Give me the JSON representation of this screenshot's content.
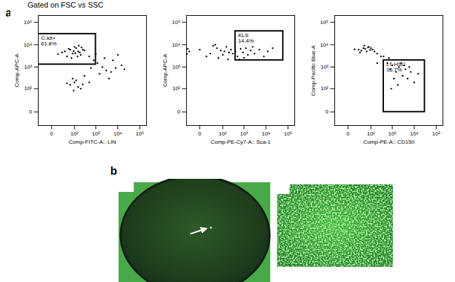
{
  "title": "Gated on FSC vs SSC",
  "panel_labels": [
    "a",
    "b"
  ],
  "chart_data": [
    {
      "type": "scatter",
      "x_label": "Comp-FITC-A:: LIN",
      "y_label": "Comp-APC-A",
      "color": "#000000",
      "marker": "dot",
      "log": true,
      "xlim": [
        -30,
        200000
      ],
      "ylim": [
        -30,
        200000
      ],
      "xticks": [
        0,
        {
          "value": 100,
          "label": "10²"
        },
        {
          "value": 1000,
          "label": "10³"
        },
        {
          "value": 10000,
          "label": "10⁴"
        },
        {
          "value": 100000,
          "label": "10⁵"
        }
      ],
      "yticks": [
        0,
        {
          "value": 100,
          "label": "10²"
        },
        {
          "value": 1000,
          "label": "10³"
        },
        {
          "value": 10000,
          "label": "10⁴"
        },
        {
          "value": 100000,
          "label": "10⁵"
        }
      ],
      "x": [
        30,
        60,
        80,
        120,
        150,
        200,
        40,
        100,
        250,
        180,
        70,
        300,
        20,
        90,
        140,
        220,
        50,
        110,
        160,
        10,
        500,
        800,
        1200,
        2000,
        3000,
        5000,
        8000,
        15000,
        600,
        1500,
        4000,
        60,
        100,
        150,
        80,
        200,
        120,
        40,
        250,
        300,
        90,
        500,
        1000,
        2500,
        6000,
        10000,
        20000
      ],
      "y": [
        5000,
        6000,
        4000,
        7000,
        5000,
        3500,
        3000,
        8000,
        6000,
        4500,
        2500,
        5500,
        4500,
        5200,
        3000,
        7500,
        6500,
        4200,
        9000,
        3800,
        3000,
        2000,
        1500,
        1000,
        700,
        600,
        900,
        1200,
        900,
        500,
        300,
        150,
        200,
        120,
        300,
        100,
        250,
        180,
        160,
        400,
        80,
        200,
        4000,
        2500,
        2000,
        3500,
        800
      ],
      "annotations": [
        {
          "text": "C-kit+",
          "value": 61.8,
          "value_label": "61.8%",
          "x": [
            -30,
            1000
          ],
          "y": [
            1300,
            30000
          ]
        }
      ]
    },
    {
      "type": "scatter",
      "x_label": "Comp-PE-Cy7-A:: Sca-1",
      "y_label": "Comp-APC-A",
      "color": "#000000",
      "marker": "dot",
      "log": true,
      "xlim": [
        -30,
        200000
      ],
      "ylim": [
        -30,
        200000
      ],
      "xticks": [
        0,
        {
          "value": 100,
          "label": "10²"
        },
        {
          "value": 1000,
          "label": "10³"
        },
        {
          "value": 10000,
          "label": "10⁴"
        },
        {
          "value": 100000,
          "label": "10⁵"
        }
      ],
      "yticks": [
        0,
        {
          "value": 100,
          "label": "10²"
        },
        {
          "value": 1000,
          "label": "10³"
        },
        {
          "value": 10000,
          "label": "10⁴"
        },
        {
          "value": 100000,
          "label": "10⁵"
        }
      ],
      "x": [
        -20,
        0,
        20,
        50,
        80,
        100,
        150,
        200,
        10,
        -25,
        60,
        120,
        250,
        300,
        30,
        400,
        500,
        700,
        900,
        1200,
        1500,
        2000,
        3000,
        5000,
        8000,
        12000,
        20000,
        600,
        1000,
        -28,
        180,
        40,
        2500
      ],
      "y": [
        5000,
        6000,
        4000,
        7000,
        5500,
        3500,
        8000,
        4500,
        3000,
        6500,
        2500,
        5000,
        6000,
        4000,
        9000,
        5000,
        3000,
        6500,
        4500,
        7000,
        3500,
        5500,
        4000,
        6000,
        3000,
        5000,
        7000,
        2200,
        2600,
        3800,
        2200,
        10000,
        8000
      ],
      "annotations": [
        {
          "text": "KLS",
          "value": 14.4,
          "value_label": "14.4%",
          "x": [
            400,
            60000
          ],
          "y": [
            2000,
            40000
          ]
        }
      ]
    },
    {
      "type": "scatter",
      "x_label": "Comp-PE-A:: CD150",
      "y_label": "Comp-Pacific Blue-A",
      "color": "#000000",
      "marker": "dot",
      "log": true,
      "xlim": [
        -30,
        200000
      ],
      "ylim": [
        -30,
        200000
      ],
      "xticks": [
        0,
        {
          "value": 100,
          "label": "10²"
        },
        {
          "value": 1000,
          "label": "10³"
        },
        {
          "value": 10000,
          "label": "10⁴"
        },
        {
          "value": 100000,
          "label": "10⁵"
        }
      ],
      "yticks": [
        0,
        {
          "value": 100,
          "label": "10²"
        },
        {
          "value": 1000,
          "label": "10³"
        },
        {
          "value": 10000,
          "label": "10⁴"
        },
        {
          "value": 100000,
          "label": "10⁵"
        }
      ],
      "x": [
        20,
        40,
        60,
        80,
        30,
        50,
        70,
        10,
        90,
        100,
        120,
        45,
        25,
        150,
        200,
        300,
        600,
        800,
        1000,
        1500,
        2000,
        3000,
        4000,
        5000,
        7000,
        10000,
        1200,
        2500,
        700,
        1800,
        3500,
        6000,
        900,
        15000,
        400,
        200
      ],
      "y": [
        6000,
        7000,
        5000,
        8000,
        5500,
        6500,
        7500,
        6200,
        5800,
        7000,
        6000,
        9000,
        4500,
        5000,
        4000,
        3000,
        1500,
        800,
        1200,
        600,
        1000,
        400,
        800,
        300,
        600,
        200,
        300,
        1500,
        2500,
        150,
        1200,
        1000,
        100,
        500,
        3000,
        1500
      ],
      "annotations": [
        {
          "text": "LT-HSC",
          "value": 16.7,
          "value_label": "16.7%",
          "x": [
            400,
            30000
          ],
          "y": [
            0,
            2000
          ]
        }
      ]
    }
  ]
}
